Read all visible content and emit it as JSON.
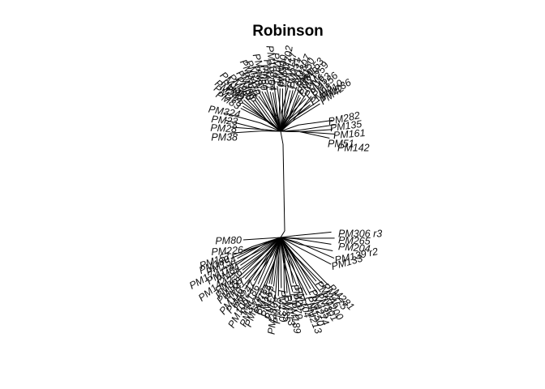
{
  "title": "Robinson",
  "leaves": {
    "upper_right": [
      "PM282",
      "PM135",
      "PM161",
      "PM51",
      "PM142"
    ],
    "upper_left": [
      "PM324",
      "PM23",
      "PM28",
      "PM38"
    ],
    "upper_arc": [
      "PM285",
      "PM153",
      "PM136"
    ],
    "lower_left": [
      "PM80",
      "PM226"
    ],
    "lower_right": [
      "PM306 r3",
      "PM265",
      "PM204",
      "PM139 r2",
      "PM133"
    ]
  }
}
